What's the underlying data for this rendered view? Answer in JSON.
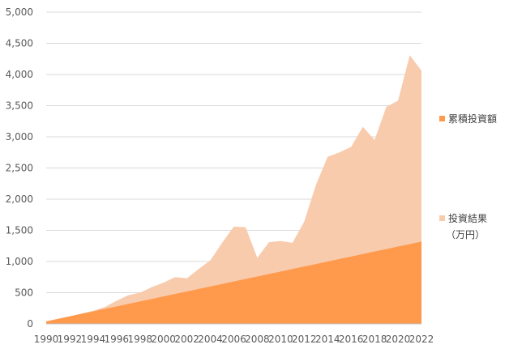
{
  "chart_data": {
    "type": "area",
    "title": "",
    "xlabel": "",
    "ylabel": "",
    "ylim": [
      0,
      5000
    ],
    "yticks": [
      0,
      500,
      1000,
      1500,
      2000,
      2500,
      3000,
      3500,
      4000,
      4500,
      5000
    ],
    "ytick_labels": [
      "0",
      "500",
      "1,000",
      "1,500",
      "2,000",
      "2,500",
      "3,000",
      "3,500",
      "4,000",
      "4,500",
      "5,000"
    ],
    "x": [
      1990,
      1991,
      1992,
      1993,
      1994,
      1995,
      1996,
      1997,
      1998,
      1999,
      2000,
      2001,
      2002,
      2003,
      2004,
      2005,
      2006,
      2007,
      2008,
      2009,
      2010,
      2011,
      2012,
      2013,
      2014,
      2015,
      2016,
      2017,
      2018,
      2019,
      2020,
      2021,
      2022
    ],
    "xtick_labels": [
      "1990",
      "1992",
      "1994",
      "1996",
      "1998",
      "2000",
      "2002",
      "2004",
      "2006",
      "2008",
      "2010",
      "2012",
      "2014",
      "2016",
      "2018",
      "2020",
      "2022"
    ],
    "grid": "horizontal",
    "legend_position": "right",
    "series": [
      {
        "name": "投資結果（万円）",
        "color": "#f8cbad",
        "values": [
          40,
          80,
          120,
          165,
          210,
          270,
          370,
          460,
          500,
          590,
          660,
          750,
          730,
          880,
          1020,
          1300,
          1560,
          1550,
          1060,
          1310,
          1330,
          1300,
          1640,
          2230,
          2680,
          2750,
          2840,
          3160,
          2950,
          3480,
          3580,
          4310,
          4060
        ]
      },
      {
        "name": "累積投資額",
        "color": "#ff9a4d",
        "values": [
          40,
          80,
          120,
          160,
          200,
          240,
          280,
          320,
          360,
          400,
          440,
          480,
          520,
          560,
          600,
          640,
          680,
          720,
          760,
          800,
          840,
          880,
          920,
          960,
          1000,
          1040,
          1080,
          1120,
          1160,
          1200,
          1240,
          1280,
          1320
        ]
      }
    ]
  },
  "legend": {
    "cumulative_label": "累積投資額",
    "result_label_line1": "投資結果",
    "result_label_line2": "（万円）"
  }
}
